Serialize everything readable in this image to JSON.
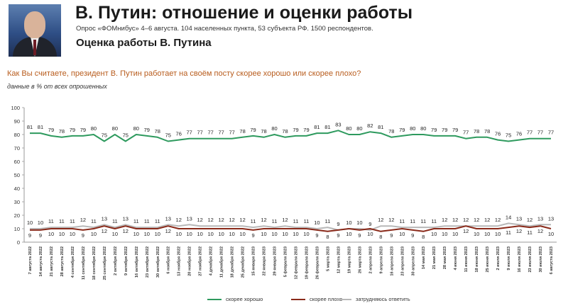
{
  "header": {
    "title": "В. Путин: отношение и оценки работы",
    "subtitle": "Опрос «ФОМнибус» 4–6 августа. 104 населенных пункта, 53 субъекта РФ. 1500 респондентов.",
    "heading": "Оценка работы В. Путина",
    "question": "Как Вы считаете, президент В. Путин работает на своём посту скорее хорошо или скорее плохо?",
    "note": "данные в % от всех опрошенных"
  },
  "colors": {
    "good": "#2e9a5e",
    "bad": "#8a2a1a",
    "hard": "#b8b8b8"
  },
  "chart_data": {
    "type": "line",
    "ylim": [
      0,
      100
    ],
    "yticks": [
      0,
      10,
      20,
      30,
      40,
      50,
      60,
      70,
      80,
      90,
      100
    ],
    "grid": false,
    "legend": "bottom",
    "x": [
      "7 августа 2022",
      "14 августа 2022",
      "21 августа 2022",
      "28 августа 2022",
      "4 сентября 2022",
      "11 сентября 2022",
      "18 сентября 2022",
      "25 сентября 2022",
      "2 октября 2022",
      "9 октября 2022",
      "16 октября 2022",
      "23 октября 2022",
      "30 октября 2022",
      "6 ноября 2022",
      "13 ноября 2022",
      "20 ноября 2022",
      "27 ноября 2022",
      "4 декабря 2022",
      "11 декабря 2022",
      "18 декабря 2022",
      "25 декабря 2022",
      "15 января 2023",
      "22 января 2023",
      "29 января 2023",
      "5 февраля 2023",
      "12 февраля 2023",
      "19 февраля 2023",
      "26 февраля 2023",
      "5 марта 2023",
      "12 марта 2023",
      "19 марта 2023",
      "26 марта 2023",
      "2 апреля 2023",
      "9 апреля 2023",
      "16 апреля 2023",
      "23 апреля 2023",
      "30 апреля 2023",
      "14 мая 2023",
      "21 мая 2023",
      "28 мая 2023",
      "4 июня 2023",
      "11 июня 2023",
      "18 июня 2023",
      "25 июня 2023",
      "2 июля 2023",
      "9 июля 2023",
      "16 июля 2023",
      "23 июля 2023",
      "30 июля 2023",
      "6 августа 2023"
    ],
    "series": [
      {
        "name": "скорее хорошо",
        "values": [
          81,
          81,
          79,
          78,
          79,
          79,
          80,
          75,
          80,
          75,
          80,
          79,
          78,
          75,
          76,
          77,
          77,
          77,
          77,
          77,
          78,
          79,
          78,
          80,
          78,
          79,
          79,
          81,
          81,
          83,
          80,
          80,
          82,
          81,
          78,
          79,
          80,
          80,
          79,
          79,
          79,
          77,
          78,
          78,
          76,
          75,
          76,
          77,
          77,
          77
        ],
        "labels_shown": [
          81,
          81,
          79,
          78,
          79,
          79,
          80,
          75,
          80,
          75,
          80,
          79,
          78,
          75,
          76,
          77,
          77,
          77,
          77,
          77,
          78,
          79,
          78,
          80,
          78,
          79,
          79,
          81,
          81,
          83,
          80,
          80,
          82,
          81,
          78,
          79,
          80,
          80,
          79,
          79,
          79,
          77,
          78,
          78,
          76,
          75,
          76,
          77,
          77,
          77
        ]
      },
      {
        "name": "скорее плохо",
        "values": [
          9,
          9,
          10,
          10,
          10,
          9,
          10,
          12,
          10,
          12,
          10,
          10,
          10,
          12,
          10,
          10,
          10,
          10,
          10,
          10,
          10,
          9,
          10,
          10,
          10,
          10,
          10,
          9,
          8,
          9,
          10,
          9,
          10,
          8,
          9,
          10,
          9,
          8,
          10,
          10,
          10,
          12,
          10,
          10,
          10,
          11,
          12,
          11,
          12,
          10
        ],
        "labels_shown": [
          9,
          9,
          10,
          10,
          10,
          9,
          10,
          12,
          10,
          12,
          10,
          10,
          10,
          12,
          10,
          10,
          10,
          10,
          10,
          10,
          10,
          9,
          10,
          10,
          10,
          10,
          10,
          9,
          8,
          9,
          10,
          9,
          10,
          8,
          9,
          10,
          9,
          8,
          10,
          10,
          10,
          12,
          10,
          10,
          10,
          11,
          12,
          11,
          12,
          10
        ]
      },
      {
        "name": "затрудняюсь ответить",
        "values": [
          10,
          10,
          11,
          11,
          11,
          12,
          11,
          13,
          11,
          13,
          11,
          11,
          11,
          13,
          12,
          13,
          12,
          12,
          12,
          12,
          12,
          11,
          12,
          11,
          12,
          11,
          11,
          10,
          11,
          9,
          10,
          10,
          9,
          12,
          12,
          11,
          11,
          11,
          11,
          12,
          12,
          12,
          12,
          12,
          12,
          14,
          13,
          12,
          13,
          13
        ],
        "labels_shown": [
          10,
          10,
          11,
          11,
          11,
          12,
          11,
          13,
          11,
          13,
          11,
          11,
          11,
          13,
          12,
          13,
          12,
          12,
          12,
          12,
          12,
          11,
          12,
          11,
          12,
          11,
          11,
          10,
          11,
          9,
          10,
          10,
          9,
          12,
          12,
          11,
          11,
          11,
          11,
          12,
          12,
          12,
          12,
          12,
          12,
          14,
          13,
          12,
          13,
          13
        ]
      }
    ]
  }
}
